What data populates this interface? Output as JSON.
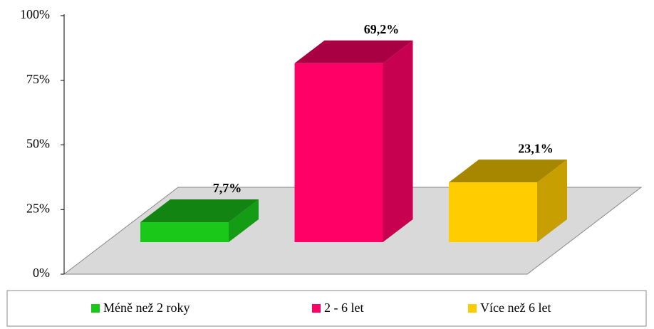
{
  "chart_data": {
    "type": "bar3d",
    "categories": [
      null
    ],
    "series": [
      {
        "name": "Méně než 2 roky",
        "color": "#19c819",
        "values": [
          7.7
        ],
        "value_labels": [
          "7,7%"
        ]
      },
      {
        "name": "2 - 6 let",
        "color": "#ff0066",
        "values": [
          69.2
        ],
        "value_labels": [
          "69,2%"
        ]
      },
      {
        "name": "Více než 6 let",
        "color": "#ffcc00",
        "values": [
          23.1
        ],
        "value_labels": [
          "23,1%"
        ]
      }
    ],
    "ylim": [
      0,
      100
    ],
    "yticks": [
      {
        "value": 0,
        "label": "0%"
      },
      {
        "value": 25,
        "label": "25%"
      },
      {
        "value": 50,
        "label": "50%"
      },
      {
        "value": 75,
        "label": "75%"
      },
      {
        "value": 100,
        "label": "100%"
      }
    ],
    "legend": "bottom"
  }
}
